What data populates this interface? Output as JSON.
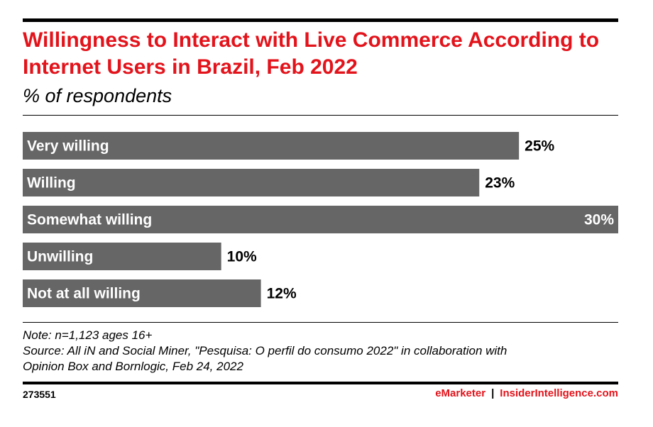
{
  "header": {
    "title": "Willingness to Interact with Live Commerce According to Internet Users in Brazil, Feb 2022",
    "subtitle": "% of respondents"
  },
  "chart_data": {
    "type": "bar",
    "orientation": "horizontal",
    "categories": [
      "Very willing",
      "Willing",
      "Somewhat willing",
      "Unwilling",
      "Not at all willing"
    ],
    "values": [
      25,
      23,
      30,
      10,
      12
    ],
    "value_labels": [
      "25%",
      "23%",
      "30%",
      "10%",
      "12%"
    ],
    "xlim": [
      0,
      30
    ],
    "grid": false,
    "bar_color": "#666666"
  },
  "notes": {
    "note": "Note: n=1,123 ages 16+",
    "source_line1": "Source: All iN and Social Miner, \"Pesquisa: O perfil do consumo 2022\" in collaboration with",
    "source_line2": "Opinion Box and Bornlogic, Feb 24, 2022"
  },
  "footer": {
    "chart_id": "273551",
    "brand1": "eMarketer",
    "separator": "|",
    "brand2": "InsiderIntelligence.com"
  },
  "colors": {
    "accent": "#e3131b",
    "bar": "#666666"
  }
}
